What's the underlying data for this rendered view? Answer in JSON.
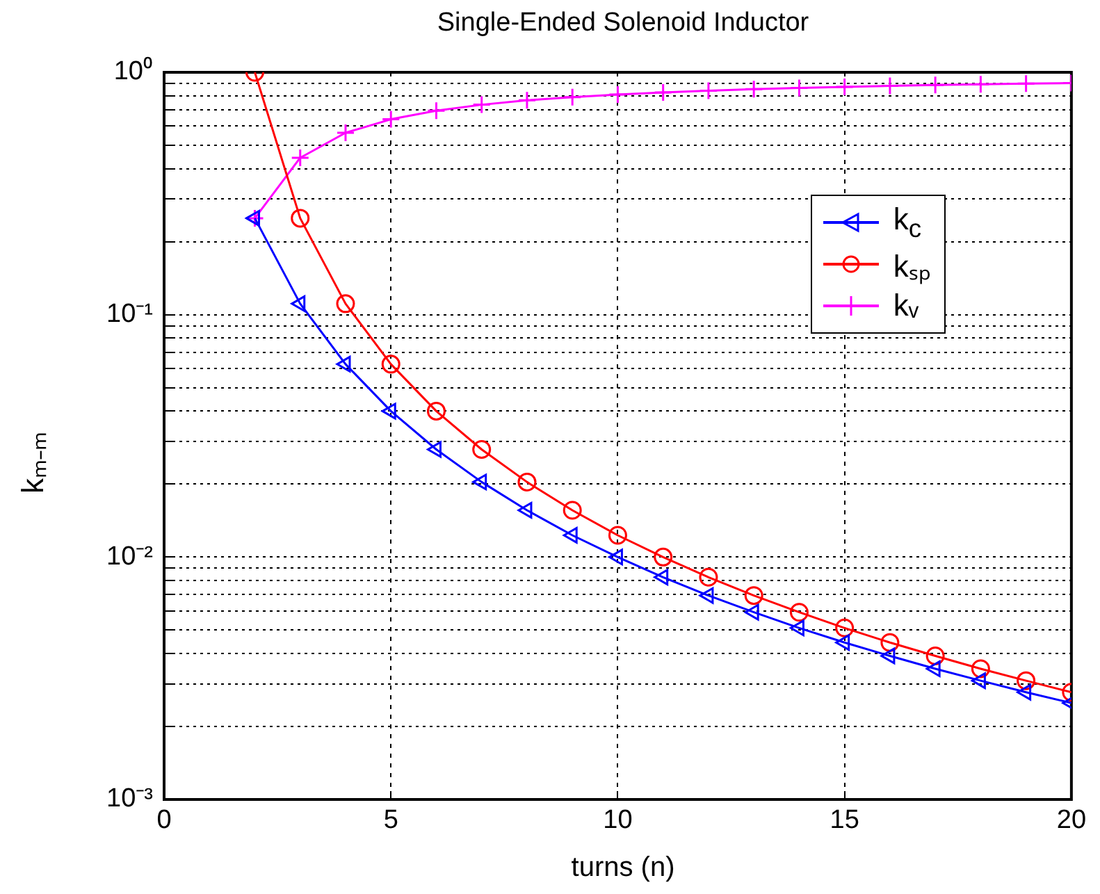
{
  "chart_data": {
    "type": "line",
    "title": "Single-Ended Solenoid Inductor",
    "xlabel": "turns (n)",
    "ylabel": "kₘ₋ₘ",
    "x": [
      2,
      3,
      4,
      5,
      6,
      7,
      8,
      9,
      10,
      11,
      12,
      13,
      14,
      15,
      16,
      17,
      18,
      19,
      20
    ],
    "series": [
      {
        "name": "k$_{c}$",
        "color": "#0000ff",
        "marker": "triangle",
        "values": [
          0.25,
          0.111,
          0.0625,
          0.04,
          0.0278,
          0.0204,
          0.0156,
          0.0123,
          0.01,
          0.00826,
          0.00694,
          0.00592,
          0.0051,
          0.00444,
          0.00391,
          0.00346,
          0.00309,
          0.00277,
          0.0025
        ]
      },
      {
        "name": "kₛₚ",
        "color": "#ff0000",
        "marker": "circle",
        "values": [
          1,
          0.25,
          0.111,
          0.0625,
          0.04,
          0.0278,
          0.0204,
          0.0156,
          0.0123,
          0.01,
          0.00826,
          0.00694,
          0.00592,
          0.0051,
          0.00444,
          0.00391,
          0.00346,
          0.00309,
          0.00277
        ]
      },
      {
        "name": "kᵥ",
        "color": "#ff00ff",
        "marker": "cross",
        "values": [
          0.25,
          0.444,
          0.563,
          0.64,
          0.694,
          0.735,
          0.766,
          0.79,
          0.81,
          0.826,
          0.84,
          0.852,
          0.862,
          0.871,
          0.879,
          0.886,
          0.892,
          0.898,
          0.903
        ]
      }
    ],
    "log": "y",
    "xlim": [
      0,
      20
    ],
    "xticks": [
      0,
      5,
      10,
      15,
      20
    ],
    "ylim": [
      0.001,
      1
    ],
    "yticks": [
      {
        "value": 0.001,
        "label": "10⁻³"
      },
      {
        "value": 0.002,
        "label": null
      },
      {
        "value": 0.003,
        "label": null
      },
      {
        "value": 0.004,
        "label": null
      },
      {
        "value": 0.005,
        "label": null
      },
      {
        "value": 0.006,
        "label": null
      },
      {
        "value": 0.007,
        "label": null
      },
      {
        "value": 0.008,
        "label": null
      },
      {
        "value": 0.009,
        "label": null
      },
      {
        "value": 0.01,
        "label": "10⁻²"
      },
      {
        "value": 0.02,
        "label": null
      },
      {
        "value": 0.03,
        "label": null
      },
      {
        "value": 0.04,
        "label": null
      },
      {
        "value": 0.05,
        "label": null
      },
      {
        "value": 0.06,
        "label": null
      },
      {
        "value": 0.07,
        "label": null
      },
      {
        "value": 0.08,
        "label": null
      },
      {
        "value": 0.09,
        "label": null
      },
      {
        "value": 0.1,
        "label": "10⁻¹"
      },
      {
        "value": 0.2,
        "label": null
      },
      {
        "value": 0.3,
        "label": null
      },
      {
        "value": 0.4,
        "label": null
      },
      {
        "value": 0.5,
        "label": null
      },
      {
        "value": 0.6,
        "label": null
      },
      {
        "value": 0.7,
        "label": null
      },
      {
        "value": 0.8,
        "label": null
      },
      {
        "value": 0.9,
        "label": null
      },
      {
        "value": 1,
        "label": "10⁰"
      }
    ],
    "grid": true,
    "legend": "top right"
  }
}
